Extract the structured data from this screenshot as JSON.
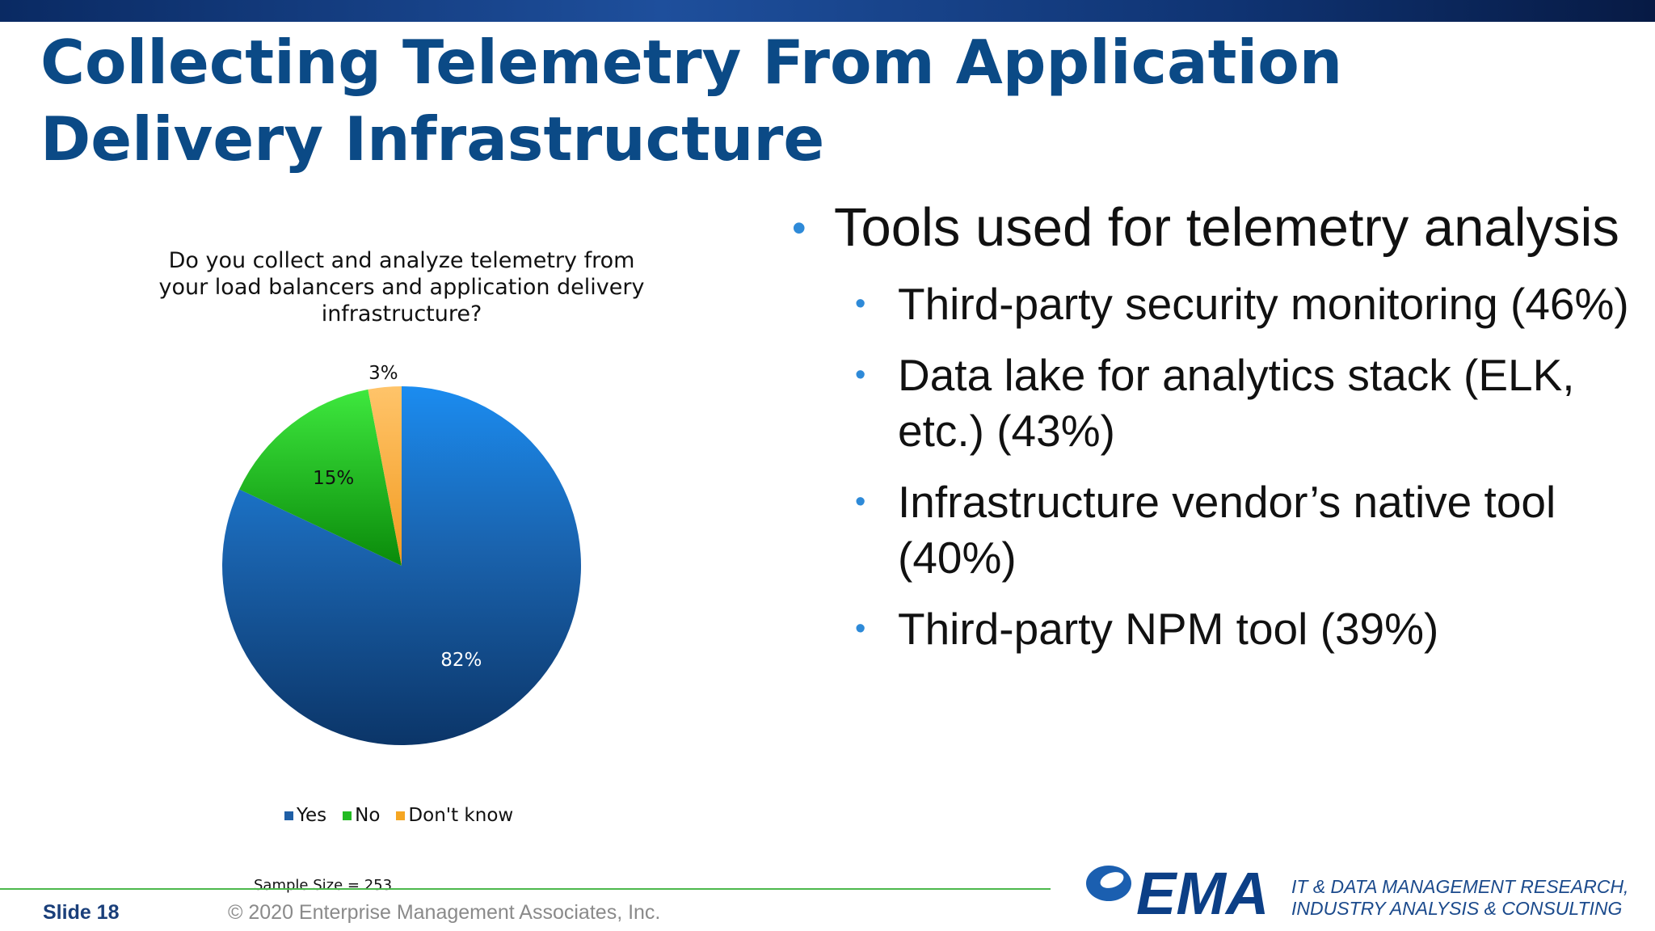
{
  "slide": {
    "title": "Collecting Telemetry From Application Delivery Infrastructure",
    "slide_label": "Slide  18",
    "copyright": "© 2020 Enterprise Management Associates, Inc.",
    "sample_size": "Sample Size = 253",
    "logo_text": "EMA",
    "tagline_line1": "IT & DATA MANAGEMENT RESEARCH,",
    "tagline_line2": "INDUSTRY ANALYSIS & CONSULTING"
  },
  "bullets": {
    "main": "Tools used for telemetry analysis",
    "sub": [
      "Third-party security monitoring (46%)",
      "Data lake for analytics stack (ELK, etc.) (43%)",
      "Infrastructure vendor’s native tool (40%)",
      "Third-party NPM tool (39%)"
    ]
  },
  "colors": {
    "title": "#0b4a86",
    "yes": "#1f5fa6",
    "no": "#22bb22",
    "dont_know": "#f5a623",
    "bullet_dot": "#2e8ad8",
    "footer_line": "#4cb84c"
  },
  "chart_data": {
    "type": "pie",
    "title": "Do you collect and analyze telemetry from your load balancers and application delivery infrastructure?",
    "categories": [
      "Yes",
      "No",
      "Don't know"
    ],
    "values": [
      82,
      15,
      3
    ],
    "data_labels": [
      "82%",
      "15%",
      "3%"
    ],
    "legend_position": "bottom"
  }
}
